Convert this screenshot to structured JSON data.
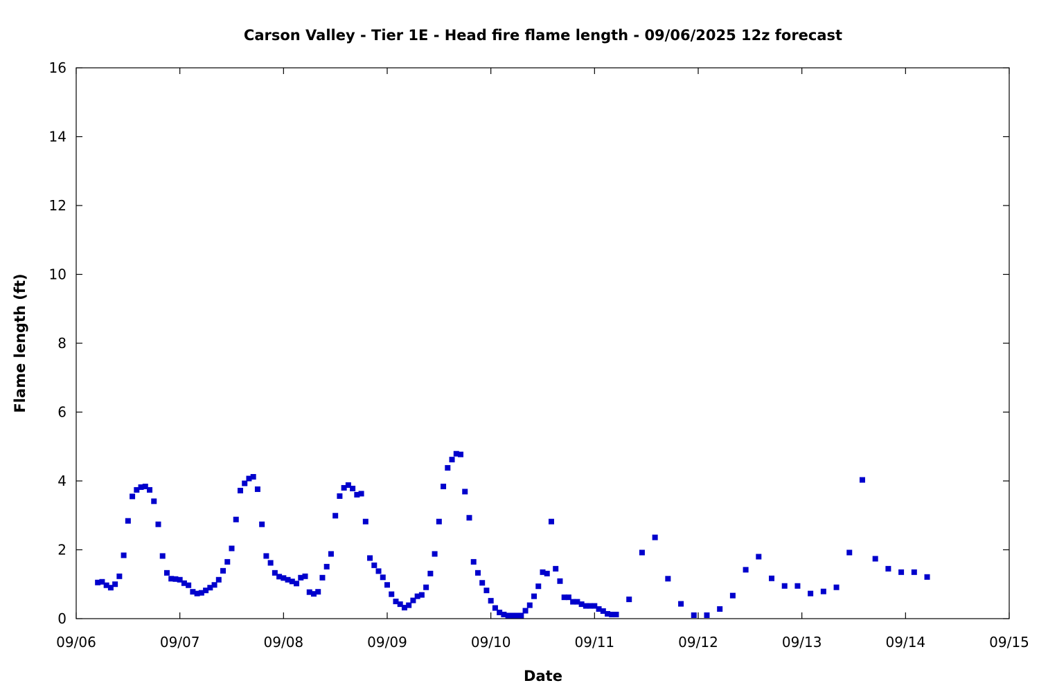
{
  "chart_data": {
    "type": "scatter",
    "title": "Carson Valley - Tier 1E - Head fire flame length - 09/06/2025 12z forecast",
    "xlabel": "Date",
    "ylabel": "Flame length (ft)",
    "xlim": [
      "09/06",
      "09/15"
    ],
    "ylim": [
      0,
      16
    ],
    "x_ticks": [
      "09/06",
      "09/07",
      "09/08",
      "09/09",
      "09/10",
      "09/11",
      "09/12",
      "09/13",
      "09/14",
      "09/15"
    ],
    "y_ticks": [
      0,
      2,
      4,
      6,
      8,
      10,
      12,
      14,
      16
    ],
    "grid": false,
    "legend": "none",
    "marker_color": "#0000cc",
    "series": [
      {
        "points": [
          [
            "09/06 05:00",
            1.05
          ],
          [
            "09/06 06:00",
            1.07
          ],
          [
            "09/06 07:00",
            0.97
          ],
          [
            "09/06 08:00",
            0.9
          ],
          [
            "09/06 09:00",
            1.0
          ],
          [
            "09/06 10:00",
            1.23
          ],
          [
            "09/06 11:00",
            1.84
          ],
          [
            "09/06 12:00",
            2.84
          ],
          [
            "09/06 13:00",
            3.55
          ],
          [
            "09/06 14:00",
            3.74
          ],
          [
            "09/06 15:00",
            3.82
          ],
          [
            "09/06 16:00",
            3.84
          ],
          [
            "09/06 17:00",
            3.74
          ],
          [
            "09/06 18:00",
            3.41
          ],
          [
            "09/06 19:00",
            2.74
          ],
          [
            "09/06 20:00",
            1.82
          ],
          [
            "09/06 21:00",
            1.33
          ],
          [
            "09/06 22:00",
            1.16
          ],
          [
            "09/06 23:00",
            1.15
          ],
          [
            "09/07 00:00",
            1.13
          ],
          [
            "09/07 01:00",
            1.03
          ],
          [
            "09/07 02:00",
            0.97
          ],
          [
            "09/07 03:00",
            0.78
          ],
          [
            "09/07 04:00",
            0.73
          ],
          [
            "09/07 05:00",
            0.75
          ],
          [
            "09/07 06:00",
            0.82
          ],
          [
            "09/07 07:00",
            0.9
          ],
          [
            "09/07 08:00",
            0.98
          ],
          [
            "09/07 09:00",
            1.13
          ],
          [
            "09/07 10:00",
            1.39
          ],
          [
            "09/07 11:00",
            1.65
          ],
          [
            "09/07 12:00",
            2.04
          ],
          [
            "09/07 13:00",
            2.88
          ],
          [
            "09/07 14:00",
            3.72
          ],
          [
            "09/07 15:00",
            3.93
          ],
          [
            "09/07 16:00",
            4.07
          ],
          [
            "09/07 17:00",
            4.12
          ],
          [
            "09/07 18:00",
            3.76
          ],
          [
            "09/07 19:00",
            2.74
          ],
          [
            "09/07 20:00",
            1.82
          ],
          [
            "09/07 21:00",
            1.62
          ],
          [
            "09/07 22:00",
            1.33
          ],
          [
            "09/07 23:00",
            1.22
          ],
          [
            "09/08 00:00",
            1.18
          ],
          [
            "09/08 01:00",
            1.13
          ],
          [
            "09/08 02:00",
            1.08
          ],
          [
            "09/08 03:00",
            1.02
          ],
          [
            "09/08 04:00",
            1.19
          ],
          [
            "09/08 05:00",
            1.23
          ],
          [
            "09/08 06:00",
            0.77
          ],
          [
            "09/08 07:00",
            0.72
          ],
          [
            "09/08 08:00",
            0.78
          ],
          [
            "09/08 09:00",
            1.19
          ],
          [
            "09/08 10:00",
            1.51
          ],
          [
            "09/08 11:00",
            1.88
          ],
          [
            "09/08 12:00",
            2.99
          ],
          [
            "09/08 13:00",
            3.56
          ],
          [
            "09/08 14:00",
            3.8
          ],
          [
            "09/08 15:00",
            3.88
          ],
          [
            "09/08 16:00",
            3.78
          ],
          [
            "09/08 17:00",
            3.6
          ],
          [
            "09/08 18:00",
            3.63
          ],
          [
            "09/08 19:00",
            2.82
          ],
          [
            "09/08 20:00",
            1.76
          ],
          [
            "09/08 21:00",
            1.55
          ],
          [
            "09/08 22:00",
            1.38
          ],
          [
            "09/08 23:00",
            1.2
          ],
          [
            "09/09 00:00",
            0.98
          ],
          [
            "09/09 01:00",
            0.71
          ],
          [
            "09/09 02:00",
            0.5
          ],
          [
            "09/09 03:00",
            0.42
          ],
          [
            "09/09 04:00",
            0.32
          ],
          [
            "09/09 05:00",
            0.39
          ],
          [
            "09/09 06:00",
            0.53
          ],
          [
            "09/09 07:00",
            0.65
          ],
          [
            "09/09 08:00",
            0.69
          ],
          [
            "09/09 09:00",
            0.91
          ],
          [
            "09/09 10:00",
            1.31
          ],
          [
            "09/09 11:00",
            1.88
          ],
          [
            "09/09 12:00",
            2.82
          ],
          [
            "09/09 13:00",
            3.84
          ],
          [
            "09/09 14:00",
            4.38
          ],
          [
            "09/09 15:00",
            4.62
          ],
          [
            "09/09 16:00",
            4.79
          ],
          [
            "09/09 17:00",
            4.77
          ],
          [
            "09/09 18:00",
            3.69
          ],
          [
            "09/09 19:00",
            2.93
          ],
          [
            "09/09 20:00",
            1.65
          ],
          [
            "09/09 21:00",
            1.33
          ],
          [
            "09/09 22:00",
            1.04
          ],
          [
            "09/09 23:00",
            0.82
          ],
          [
            "09/10 00:00",
            0.52
          ],
          [
            "09/10 01:00",
            0.31
          ],
          [
            "09/10 02:00",
            0.18
          ],
          [
            "09/10 03:00",
            0.12
          ],
          [
            "09/10 04:00",
            0.09
          ],
          [
            "09/10 05:00",
            0.09
          ],
          [
            "09/10 06:00",
            0.09
          ],
          [
            "09/10 07:00",
            0.09
          ],
          [
            "09/10 08:00",
            0.23
          ],
          [
            "09/10 09:00",
            0.39
          ],
          [
            "09/10 10:00",
            0.65
          ],
          [
            "09/10 11:00",
            0.94
          ],
          [
            "09/10 12:00",
            1.35
          ],
          [
            "09/10 13:00",
            1.31
          ],
          [
            "09/10 14:00",
            2.82
          ],
          [
            "09/10 15:00",
            1.45
          ],
          [
            "09/10 16:00",
            1.09
          ],
          [
            "09/10 17:00",
            0.62
          ],
          [
            "09/10 18:00",
            0.62
          ],
          [
            "09/10 19:00",
            0.49
          ],
          [
            "09/10 20:00",
            0.49
          ],
          [
            "09/10 21:00",
            0.42
          ],
          [
            "09/10 22:00",
            0.37
          ],
          [
            "09/10 23:00",
            0.37
          ],
          [
            "09/11 00:00",
            0.37
          ],
          [
            "09/11 01:00",
            0.28
          ],
          [
            "09/11 02:00",
            0.22
          ],
          [
            "09/11 03:00",
            0.14
          ],
          [
            "09/11 04:00",
            0.12
          ],
          [
            "09/11 05:00",
            0.12
          ],
          [
            "09/11 08:00",
            0.56
          ],
          [
            "09/11 11:00",
            1.92
          ],
          [
            "09/11 14:00",
            2.36
          ],
          [
            "09/11 17:00",
            1.16
          ],
          [
            "09/11 20:00",
            0.43
          ],
          [
            "09/11 23:00",
            0.1
          ],
          [
            "09/12 02:00",
            0.1
          ],
          [
            "09/12 05:00",
            0.28
          ],
          [
            "09/12 08:00",
            0.67
          ],
          [
            "09/12 11:00",
            1.42
          ],
          [
            "09/12 14:00",
            1.8
          ],
          [
            "09/12 17:00",
            1.17
          ],
          [
            "09/12 20:00",
            0.95
          ],
          [
            "09/12 23:00",
            0.95
          ],
          [
            "09/13 02:00",
            0.73
          ],
          [
            "09/13 05:00",
            0.79
          ],
          [
            "09/13 08:00",
            0.91
          ],
          [
            "09/13 11:00",
            1.92
          ],
          [
            "09/13 14:00",
            4.03
          ],
          [
            "09/13 17:00",
            1.74
          ],
          [
            "09/13 20:00",
            1.45
          ],
          [
            "09/13 23:00",
            1.35
          ],
          [
            "09/14 02:00",
            1.35
          ],
          [
            "09/14 05:00",
            1.21
          ]
        ]
      }
    ]
  }
}
